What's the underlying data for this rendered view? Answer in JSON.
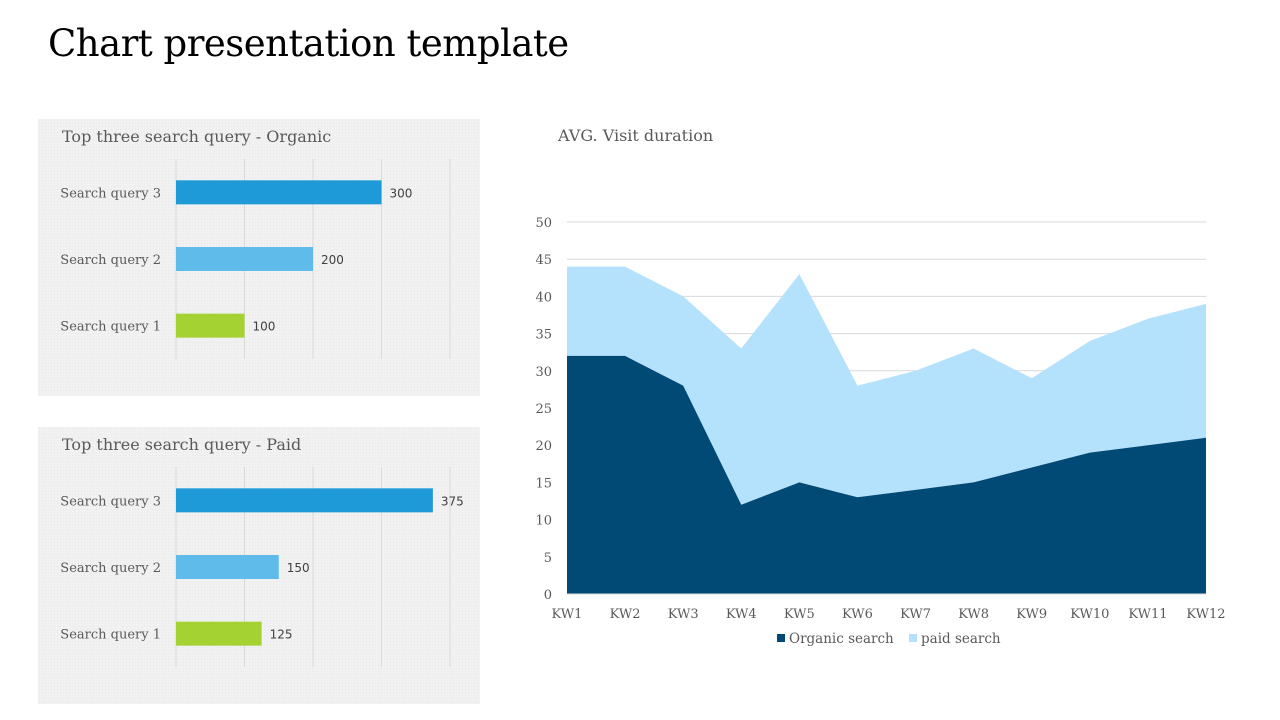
{
  "slide": {
    "title": "Chart presentation template"
  },
  "chart_data": [
    {
      "type": "bar",
      "orientation": "horizontal",
      "title": "Top three search query - Organic",
      "categories": [
        "Search query 3",
        "Search query 2",
        "Search query 1"
      ],
      "values": [
        300,
        200,
        100
      ],
      "xlim": [
        0,
        400
      ],
      "colors": [
        "#1e9ad9",
        "#5fbcea",
        "#a4d233"
      ],
      "data_labels": true,
      "grid": true
    },
    {
      "type": "bar",
      "orientation": "horizontal",
      "title": "Top three search query - Paid",
      "categories": [
        "Search query 3",
        "Search query 2",
        "Search query 1"
      ],
      "values": [
        375,
        150,
        125
      ],
      "xlim": [
        0,
        400
      ],
      "colors": [
        "#1e9ad9",
        "#5fbcea",
        "#a4d233"
      ],
      "data_labels": true,
      "grid": true
    },
    {
      "type": "area",
      "stacked": true,
      "title": "AVG. Visit duration",
      "x": [
        "KW1",
        "KW2",
        "KW3",
        "KW4",
        "KW5",
        "KW6",
        "KW7",
        "KW8",
        "KW9",
        "KW10",
        "KW11",
        "KW12"
      ],
      "series": [
        {
          "name": "Organic search",
          "color": "#004a75",
          "values": [
            32,
            32,
            28,
            12,
            15,
            13,
            14,
            15,
            17,
            19,
            20,
            21
          ]
        },
        {
          "name": "paid search",
          "color": "#b4e1fb",
          "values": [
            12,
            12,
            12,
            21,
            28,
            15,
            16,
            18,
            12,
            15,
            17,
            18
          ]
        }
      ],
      "ylim": [
        0,
        50
      ],
      "yticks": [
        "0",
        "5",
        "10",
        "15",
        "20",
        "25",
        "30",
        "35",
        "40",
        "45",
        "50"
      ],
      "grid": true,
      "legend": "bottom"
    }
  ]
}
